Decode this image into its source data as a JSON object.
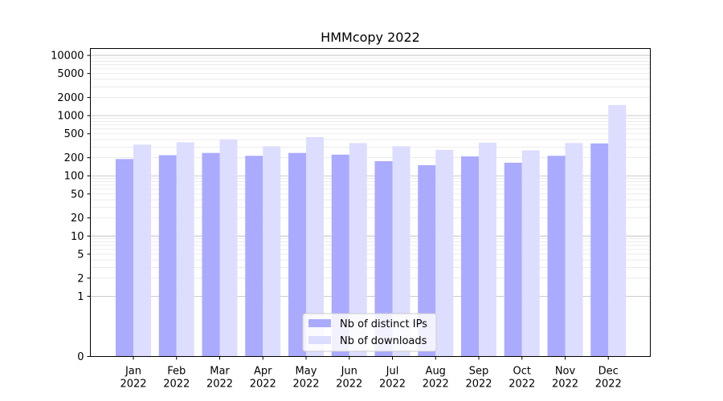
{
  "chart_data": {
    "type": "bar",
    "title": "HMMcopy 2022",
    "xlabel": "",
    "ylabel": "",
    "yscale": "symlog",
    "ylim": [
      0,
      13000
    ],
    "yticks": [
      0,
      1,
      2,
      5,
      10,
      20,
      50,
      100,
      200,
      500,
      1000,
      2000,
      5000,
      10000
    ],
    "categories": [
      "Jan\n2022",
      "Feb\n2022",
      "Mar\n2022",
      "Apr\n2022",
      "May\n2022",
      "Jun\n2022",
      "Jul\n2022",
      "Aug\n2022",
      "Sep\n2022",
      "Oct\n2022",
      "Nov\n2022",
      "Dec\n2022"
    ],
    "series": [
      {
        "name": "Nb of distinct IPs",
        "color": "#aaaaff",
        "values": [
          190,
          220,
          240,
          215,
          240,
          225,
          175,
          150,
          210,
          165,
          215,
          345
        ]
      },
      {
        "name": "Nb of downloads",
        "color": "#ddddff",
        "values": [
          330,
          360,
          405,
          310,
          440,
          350,
          310,
          270,
          355,
          265,
          350,
          1500
        ]
      }
    ],
    "grid": true,
    "legend_position": "bottom-center"
  }
}
